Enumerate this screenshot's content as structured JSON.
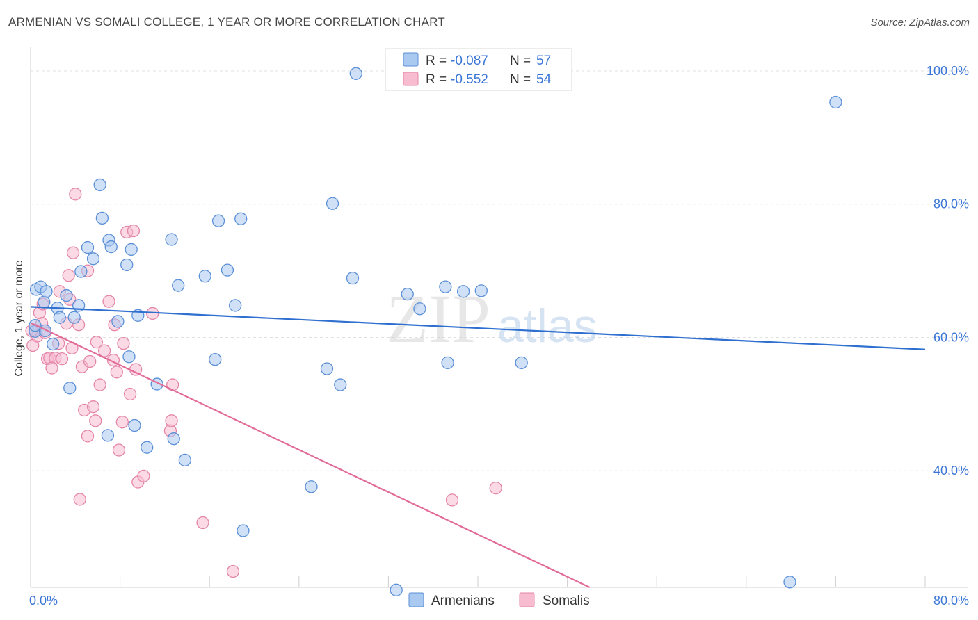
{
  "title": "ARMENIAN VS SOMALI COLLEGE, 1 YEAR OR MORE CORRELATION CHART",
  "source": "Source: ZipAtlas.com",
  "watermark": {
    "zip": "ZIP",
    "atlas": "atlas"
  },
  "colors": {
    "armenians_fill": "#a9c9f0",
    "armenians_stroke": "#5b8fd6",
    "armenians_line": "#2e6fd0",
    "somalis_fill": "#f7bcd0",
    "somalis_stroke": "#e486a8",
    "somalis_line": "#e26b98",
    "tick_label": "#3b76d6",
    "grid": "#e0e0e0"
  },
  "legend_top": {
    "rows": [
      {
        "r_label": "R =",
        "r_value": "-0.087",
        "n_label": "N =",
        "n_value": "57"
      },
      {
        "r_label": "R =",
        "r_value": "-0.552",
        "n_label": "N =",
        "n_value": "54"
      }
    ]
  },
  "legend_bottom": {
    "items": [
      "Armenians",
      "Somalis"
    ]
  },
  "chart_data": {
    "type": "scatter",
    "title": "ARMENIAN VS SOMALI COLLEGE, 1 YEAR OR MORE CORRELATION CHART",
    "xlabel": "",
    "ylabel": "College, 1 year or more",
    "xlim": [
      0,
      80
    ],
    "ylim": [
      22.5,
      102.5
    ],
    "x_tick_labels": [
      {
        "value": 0,
        "label": "0.0%"
      },
      {
        "value": 80,
        "label": "80.0%"
      }
    ],
    "y_tick_labels": [
      {
        "value": 40,
        "label": "40.0%"
      },
      {
        "value": 60,
        "label": "60.0%"
      },
      {
        "value": 80,
        "label": "80.0%"
      },
      {
        "value": 100,
        "label": "100.0%"
      }
    ],
    "grid": true,
    "legend_position": "bottom-center",
    "series": [
      {
        "name": "Armenians",
        "r": -0.087,
        "n": 57,
        "trend": {
          "x0": 0,
          "y0": 64.6,
          "x1": 80,
          "y1": 58.2
        },
        "points": [
          [
            0.4,
            60.9
          ],
          [
            0.4,
            61.8
          ],
          [
            0.5,
            67.2
          ],
          [
            0.9,
            67.6
          ],
          [
            1.2,
            65.3
          ],
          [
            1.3,
            61.0
          ],
          [
            1.4,
            66.9
          ],
          [
            2.0,
            59.0
          ],
          [
            2.4,
            64.4
          ],
          [
            2.6,
            63.0
          ],
          [
            3.2,
            66.3
          ],
          [
            3.5,
            52.4
          ],
          [
            3.9,
            63.0
          ],
          [
            4.3,
            64.8
          ],
          [
            4.5,
            69.9
          ],
          [
            5.1,
            73.5
          ],
          [
            5.6,
            71.8
          ],
          [
            6.2,
            82.9
          ],
          [
            6.4,
            77.9
          ],
          [
            6.9,
            45.3
          ],
          [
            7.0,
            74.6
          ],
          [
            7.2,
            73.6
          ],
          [
            7.8,
            62.4
          ],
          [
            8.6,
            70.9
          ],
          [
            8.8,
            57.1
          ],
          [
            9.0,
            73.2
          ],
          [
            9.3,
            46.8
          ],
          [
            9.6,
            63.3
          ],
          [
            10.4,
            43.5
          ],
          [
            11.3,
            53.0
          ],
          [
            12.6,
            74.7
          ],
          [
            12.8,
            44.8
          ],
          [
            13.2,
            67.8
          ],
          [
            13.8,
            41.6
          ],
          [
            15.6,
            69.2
          ],
          [
            16.5,
            56.7
          ],
          [
            16.8,
            77.5
          ],
          [
            17.6,
            70.1
          ],
          [
            18.3,
            64.8
          ],
          [
            18.8,
            77.8
          ],
          [
            19.0,
            31.0
          ],
          [
            25.1,
            37.6
          ],
          [
            26.5,
            55.3
          ],
          [
            27.0,
            80.1
          ],
          [
            27.7,
            52.9
          ],
          [
            28.8,
            68.9
          ],
          [
            29.1,
            99.6
          ],
          [
            32.7,
            22.1
          ],
          [
            33.7,
            66.5
          ],
          [
            34.8,
            64.3
          ],
          [
            37.1,
            67.6
          ],
          [
            37.3,
            56.2
          ],
          [
            38.7,
            66.9
          ],
          [
            40.3,
            67.0
          ],
          [
            43.9,
            56.2
          ],
          [
            72.0,
            95.3
          ],
          [
            67.9,
            23.3
          ]
        ]
      },
      {
        "name": "Somalis",
        "r": -0.552,
        "n": 54,
        "trend": {
          "x0": 0,
          "y0": 62.2,
          "x1": 50,
          "y1": 22.5
        },
        "points": [
          [
            0.2,
            58.8
          ],
          [
            0.4,
            61.1
          ],
          [
            0.6,
            60.2
          ],
          [
            0.8,
            63.7
          ],
          [
            1.0,
            62.1
          ],
          [
            1.1,
            65.0
          ],
          [
            1.3,
            60.7
          ],
          [
            1.5,
            56.8
          ],
          [
            1.7,
            56.9
          ],
          [
            2.2,
            56.9
          ],
          [
            2.5,
            59.1
          ],
          [
            2.6,
            66.9
          ],
          [
            2.8,
            56.8
          ],
          [
            3.2,
            62.1
          ],
          [
            3.4,
            69.3
          ],
          [
            3.5,
            65.7
          ],
          [
            3.7,
            58.4
          ],
          [
            3.8,
            72.7
          ],
          [
            4.0,
            81.5
          ],
          [
            4.3,
            61.9
          ],
          [
            4.4,
            35.7
          ],
          [
            4.6,
            55.6
          ],
          [
            4.8,
            49.1
          ],
          [
            5.1,
            70.0
          ],
          [
            5.1,
            45.2
          ],
          [
            5.3,
            56.4
          ],
          [
            5.6,
            49.6
          ],
          [
            5.8,
            47.5
          ],
          [
            5.9,
            59.3
          ],
          [
            6.2,
            52.9
          ],
          [
            6.6,
            58.0
          ],
          [
            7.0,
            65.4
          ],
          [
            7.4,
            56.6
          ],
          [
            7.5,
            61.9
          ],
          [
            7.7,
            54.8
          ],
          [
            7.9,
            43.1
          ],
          [
            8.2,
            47.3
          ],
          [
            8.3,
            59.1
          ],
          [
            8.6,
            75.8
          ],
          [
            8.9,
            51.5
          ],
          [
            9.2,
            76.0
          ],
          [
            9.4,
            55.2
          ],
          [
            9.6,
            38.3
          ],
          [
            10.1,
            39.2
          ],
          [
            10.9,
            63.6
          ],
          [
            12.5,
            46.0
          ],
          [
            12.6,
            47.5
          ],
          [
            12.7,
            52.9
          ],
          [
            15.4,
            32.2
          ],
          [
            18.1,
            24.9
          ],
          [
            37.7,
            35.6
          ],
          [
            41.6,
            37.4
          ],
          [
            0.1,
            61.0
          ],
          [
            1.9,
            55.4
          ]
        ]
      }
    ]
  }
}
